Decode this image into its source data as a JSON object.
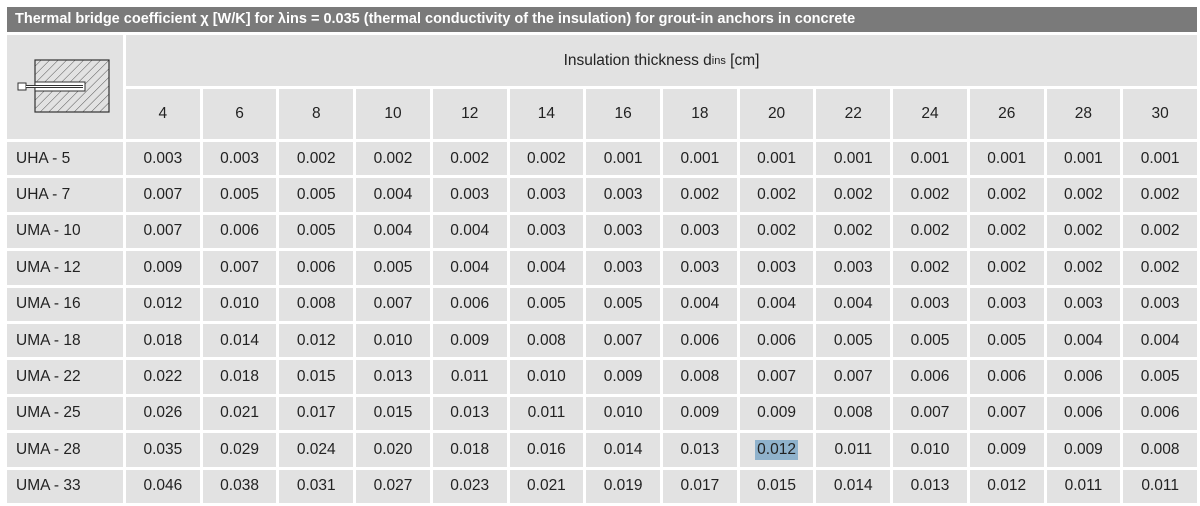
{
  "title": "Thermal bridge coefficient χ [W/K] for λins = 0.035 (thermal conductivity of the insulation) for grout-in anchors in concrete",
  "header": {
    "label_prefix": "Insulation thickness d",
    "label_sub": "ins",
    "label_suffix": " [cm]",
    "thickness_values": [
      "4",
      "6",
      "8",
      "10",
      "12",
      "14",
      "16",
      "18",
      "20",
      "22",
      "24",
      "26",
      "28",
      "30"
    ]
  },
  "rows": [
    {
      "label": "UHA - 5",
      "values": [
        "0.003",
        "0.003",
        "0.002",
        "0.002",
        "0.002",
        "0.002",
        "0.001",
        "0.001",
        "0.001",
        "0.001",
        "0.001",
        "0.001",
        "0.001",
        "0.001"
      ]
    },
    {
      "label": "UHA - 7",
      "values": [
        "0.007",
        "0.005",
        "0.005",
        "0.004",
        "0.003",
        "0.003",
        "0.003",
        "0.002",
        "0.002",
        "0.002",
        "0.002",
        "0.002",
        "0.002",
        "0.002"
      ]
    },
    {
      "label": "UMA - 10",
      "values": [
        "0.007",
        "0.006",
        "0.005",
        "0.004",
        "0.004",
        "0.003",
        "0.003",
        "0.003",
        "0.002",
        "0.002",
        "0.002",
        "0.002",
        "0.002",
        "0.002"
      ]
    },
    {
      "label": "UMA - 12",
      "values": [
        "0.009",
        "0.007",
        "0.006",
        "0.005",
        "0.004",
        "0.004",
        "0.003",
        "0.003",
        "0.003",
        "0.003",
        "0.002",
        "0.002",
        "0.002",
        "0.002"
      ]
    },
    {
      "label": "UMA - 16",
      "values": [
        "0.012",
        "0.010",
        "0.008",
        "0.007",
        "0.006",
        "0.005",
        "0.005",
        "0.004",
        "0.004",
        "0.004",
        "0.003",
        "0.003",
        "0.003",
        "0.003"
      ]
    },
    {
      "label": "UMA - 18",
      "values": [
        "0.018",
        "0.014",
        "0.012",
        "0.010",
        "0.009",
        "0.008",
        "0.007",
        "0.006",
        "0.006",
        "0.005",
        "0.005",
        "0.005",
        "0.004",
        "0.004"
      ]
    },
    {
      "label": "UMA - 22",
      "values": [
        "0.022",
        "0.018",
        "0.015",
        "0.013",
        "0.011",
        "0.010",
        "0.009",
        "0.008",
        "0.007",
        "0.007",
        "0.006",
        "0.006",
        "0.006",
        "0.005"
      ]
    },
    {
      "label": "UMA - 25",
      "values": [
        "0.026",
        "0.021",
        "0.017",
        "0.015",
        "0.013",
        "0.011",
        "0.010",
        "0.009",
        "0.009",
        "0.008",
        "0.007",
        "0.007",
        "0.006",
        "0.006"
      ]
    },
    {
      "label": "UMA - 28",
      "values": [
        "0.035",
        "0.029",
        "0.024",
        "0.020",
        "0.018",
        "0.016",
        "0.014",
        "0.013",
        "0.012",
        "0.011",
        "0.010",
        "0.009",
        "0.009",
        "0.008"
      ]
    },
    {
      "label": "UMA - 33",
      "values": [
        "0.046",
        "0.038",
        "0.031",
        "0.027",
        "0.023",
        "0.021",
        "0.019",
        "0.017",
        "0.015",
        "0.014",
        "0.013",
        "0.012",
        "0.011",
        "0.011"
      ]
    }
  ],
  "highlighted_cell": {
    "row": 8,
    "col": 8
  },
  "colors": {
    "title_bg": "#7a7a7a",
    "cell_bg": "#e2e2e2",
    "highlight_bg": "#8fb2cc"
  },
  "icons": {
    "corner": "anchor-in-concrete-diagram-icon"
  }
}
